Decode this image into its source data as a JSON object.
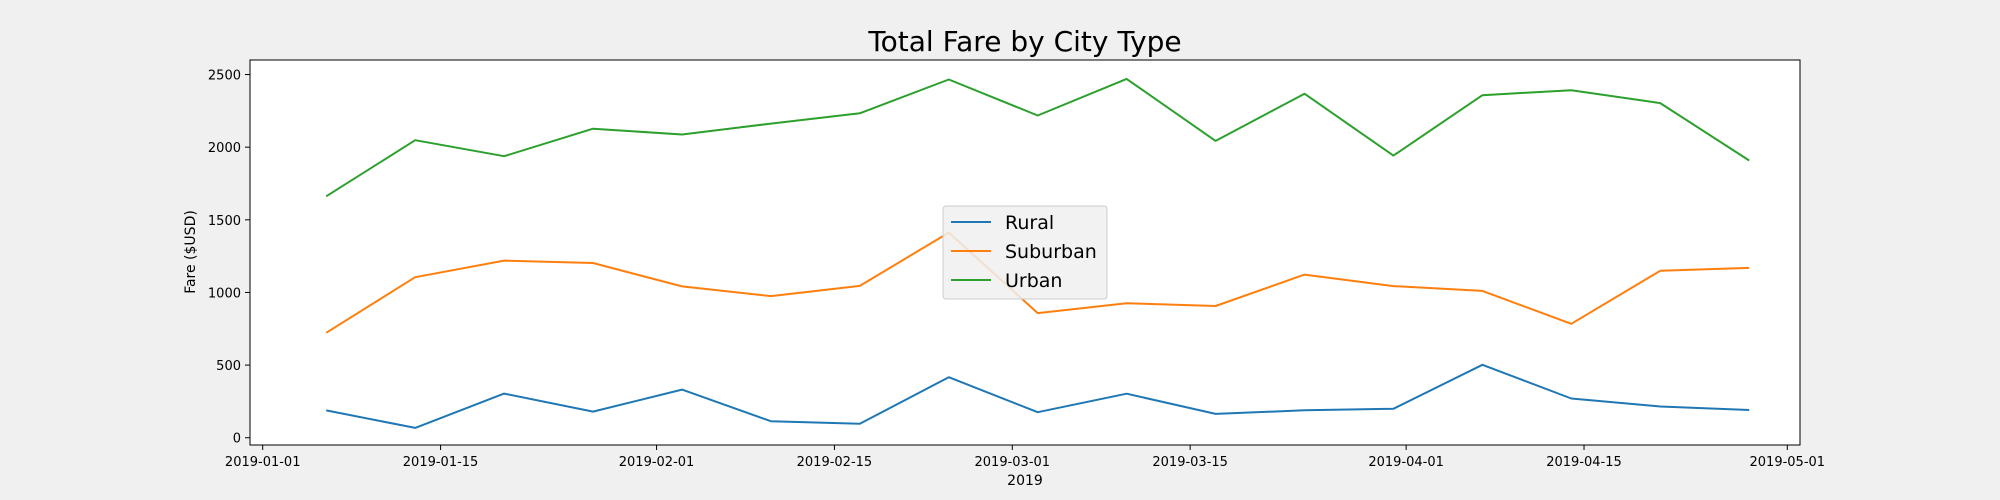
{
  "chart_data": {
    "type": "line",
    "title": "Total Fare by City Type",
    "xlabel": "2019",
    "ylabel": "Fare ($USD)",
    "x": [
      "2019-01-06",
      "2019-01-13",
      "2019-01-20",
      "2019-01-27",
      "2019-02-03",
      "2019-02-10",
      "2019-02-17",
      "2019-02-24",
      "2019-03-03",
      "2019-03-10",
      "2019-03-17",
      "2019-03-24",
      "2019-03-31",
      "2019-04-07",
      "2019-04-14",
      "2019-04-21",
      "2019-04-28"
    ],
    "x_ticks": [
      "2019-01-01",
      "2019-01-15",
      "2019-02-01",
      "2019-02-15",
      "2019-03-01",
      "2019-03-15",
      "2019-04-01",
      "2019-04-15",
      "2019-05-01"
    ],
    "xlim": [
      "2018-12-31",
      "2019-05-02"
    ],
    "y_ticks": [
      0,
      500,
      1000,
      1500,
      2000,
      2500
    ],
    "ylim": [
      -50,
      2600
    ],
    "grid": false,
    "legend_position": "center",
    "series": [
      {
        "name": "Rural",
        "color": "#1f77b4",
        "values": [
          188,
          68,
          304,
          180,
          331,
          114,
          96,
          417,
          176,
          303,
          164,
          189,
          199,
          502,
          270,
          215,
          191
        ]
      },
      {
        "name": "Suburban",
        "color": "#ff7f0e",
        "values": [
          722,
          1105,
          1219,
          1203,
          1042,
          975,
          1045,
          1412,
          858,
          926,
          907,
          1123,
          1044,
          1011,
          784,
          1149,
          1169
        ]
      },
      {
        "name": "Urban",
        "color": "#2ca02c",
        "values": [
          1662,
          2048,
          1938,
          2127,
          2087,
          2162,
          2233,
          2466,
          2218,
          2470,
          2043,
          2368,
          1942,
          2358,
          2392,
          2303,
          1908
        ]
      }
    ]
  }
}
